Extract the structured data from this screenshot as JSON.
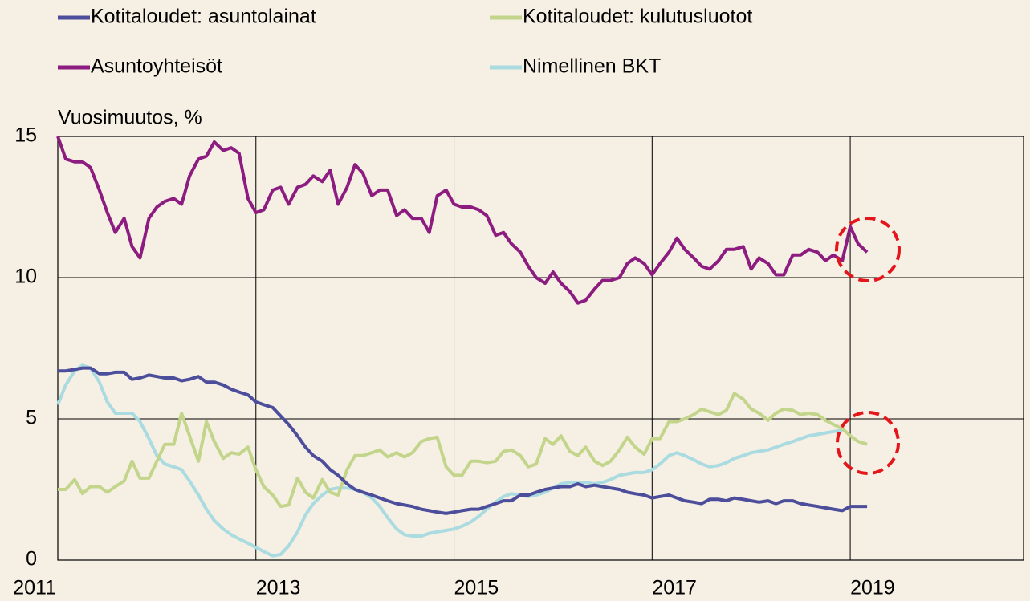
{
  "chart_data": {
    "type": "line",
    "y_axis_label": "Vuosimuutos, %",
    "legend": "top",
    "grid": true,
    "xlim": [
      2011,
      2020.75
    ],
    "xticks": [
      2011,
      2013,
      2015,
      2017,
      2019
    ],
    "ylim": [
      0,
      15
    ],
    "yticks": [
      0,
      5,
      10,
      15
    ],
    "x": [
      2011,
      2011.08,
      2011.17,
      2011.25,
      2011.33,
      2011.42,
      2011.5,
      2011.58,
      2011.67,
      2011.75,
      2011.83,
      2011.92,
      2012,
      2012.08,
      2012.17,
      2012.25,
      2012.33,
      2012.42,
      2012.5,
      2012.58,
      2012.67,
      2012.75,
      2012.83,
      2012.92,
      2013,
      2013.08,
      2013.17,
      2013.25,
      2013.33,
      2013.42,
      2013.5,
      2013.58,
      2013.67,
      2013.75,
      2013.83,
      2013.92,
      2014,
      2014.08,
      2014.17,
      2014.25,
      2014.33,
      2014.42,
      2014.5,
      2014.58,
      2014.67,
      2014.75,
      2014.83,
      2014.92,
      2015,
      2015.08,
      2015.17,
      2015.25,
      2015.33,
      2015.42,
      2015.5,
      2015.58,
      2015.67,
      2015.75,
      2015.83,
      2015.92,
      2016,
      2016.08,
      2016.17,
      2016.25,
      2016.33,
      2016.42,
      2016.5,
      2016.58,
      2016.67,
      2016.75,
      2016.83,
      2016.92,
      2017,
      2017.08,
      2017.17,
      2017.25,
      2017.33,
      2017.42,
      2017.5,
      2017.58,
      2017.67,
      2017.75,
      2017.83,
      2017.92,
      2018,
      2018.08,
      2018.17,
      2018.25,
      2018.33,
      2018.42,
      2018.5,
      2018.58,
      2018.67,
      2018.75,
      2018.83,
      2018.92,
      2019,
      2019.08,
      2019.17
    ],
    "series": [
      {
        "name": "Kotitaloudet: asuntolainat",
        "color": "#4c4e9c",
        "values": [
          6.7,
          6.7,
          6.75,
          6.8,
          6.8,
          6.6,
          6.6,
          6.65,
          6.65,
          6.4,
          6.45,
          6.55,
          6.5,
          6.45,
          6.45,
          6.35,
          6.4,
          6.5,
          6.3,
          6.3,
          6.2,
          6.05,
          5.95,
          5.85,
          5.6,
          5.5,
          5.4,
          5.1,
          4.8,
          4.4,
          4.0,
          3.7,
          3.5,
          3.2,
          3.0,
          2.7,
          2.5,
          2.4,
          2.3,
          2.2,
          2.1,
          2.0,
          1.95,
          1.9,
          1.8,
          1.75,
          1.7,
          1.65,
          1.7,
          1.75,
          1.8,
          1.8,
          1.9,
          2.0,
          2.1,
          2.1,
          2.3,
          2.3,
          2.4,
          2.5,
          2.55,
          2.6,
          2.6,
          2.7,
          2.6,
          2.65,
          2.6,
          2.55,
          2.5,
          2.4,
          2.35,
          2.3,
          2.2,
          2.25,
          2.3,
          2.2,
          2.1,
          2.05,
          2.0,
          2.15,
          2.15,
          2.1,
          2.2,
          2.15,
          2.1,
          2.05,
          2.1,
          2.0,
          2.1,
          2.1,
          2.0,
          1.95,
          1.9,
          1.85,
          1.8,
          1.75,
          1.9,
          1.9,
          1.9
        ]
      },
      {
        "name": "Kotitaloudet: kulutusluotot",
        "color": "#c3d58b",
        "values": [
          2.5,
          2.5,
          2.85,
          2.35,
          2.6,
          2.6,
          2.4,
          2.6,
          2.8,
          3.5,
          2.9,
          2.9,
          3.5,
          4.1,
          4.1,
          5.2,
          4.4,
          3.5,
          4.9,
          4.2,
          3.6,
          3.8,
          3.75,
          4.0,
          3.2,
          2.6,
          2.3,
          1.9,
          1.95,
          2.9,
          2.4,
          2.2,
          2.85,
          2.4,
          2.3,
          3.2,
          3.7,
          3.7,
          3.8,
          3.9,
          3.65,
          3.8,
          3.65,
          3.8,
          4.2,
          4.3,
          4.35,
          3.3,
          3.0,
          3.0,
          3.5,
          3.5,
          3.45,
          3.5,
          3.85,
          3.9,
          3.7,
          3.3,
          3.4,
          4.3,
          4.1,
          4.4,
          3.85,
          3.7,
          4.0,
          3.5,
          3.35,
          3.5,
          3.9,
          4.35,
          4.0,
          3.75,
          4.3,
          4.3,
          4.9,
          4.9,
          5.0,
          5.15,
          5.35,
          5.25,
          5.15,
          5.3,
          5.9,
          5.7,
          5.35,
          5.2,
          4.95,
          5.2,
          5.35,
          5.3,
          5.15,
          5.2,
          5.15,
          4.95,
          4.8,
          4.65,
          4.4,
          4.2,
          4.1
        ]
      },
      {
        "name": "Asuntoyhteisöt",
        "color": "#8c1c7f",
        "values": [
          15.0,
          14.2,
          14.1,
          14.1,
          13.9,
          13.1,
          12.3,
          11.6,
          12.1,
          11.1,
          10.7,
          12.1,
          12.5,
          12.7,
          12.8,
          12.6,
          13.6,
          14.2,
          14.3,
          14.8,
          14.5,
          14.6,
          14.4,
          12.8,
          12.3,
          12.4,
          13.1,
          13.2,
          12.6,
          13.2,
          13.3,
          13.6,
          13.4,
          13.8,
          12.6,
          13.2,
          14.0,
          13.7,
          12.9,
          13.1,
          13.1,
          12.2,
          12.4,
          12.1,
          12.1,
          11.6,
          12.9,
          13.1,
          12.6,
          12.5,
          12.5,
          12.4,
          12.2,
          11.5,
          11.6,
          11.2,
          10.9,
          10.4,
          10.0,
          9.8,
          10.2,
          9.8,
          9.5,
          9.1,
          9.2,
          9.6,
          9.9,
          9.9,
          10.0,
          10.5,
          10.7,
          10.5,
          10.1,
          10.5,
          10.9,
          11.4,
          11.0,
          10.7,
          10.4,
          10.3,
          10.6,
          11.0,
          11.0,
          11.1,
          10.3,
          10.7,
          10.5,
          10.1,
          10.1,
          10.8,
          10.8,
          11.0,
          10.9,
          10.6,
          10.8,
          10.6,
          11.8,
          11.2,
          10.9
        ]
      },
      {
        "name": "Nimellinen BKT",
        "color": "#a9dbe0",
        "values": [
          5.5,
          6.2,
          6.7,
          6.9,
          6.8,
          6.3,
          5.6,
          5.2,
          5.2,
          5.2,
          4.9,
          4.3,
          3.7,
          3.4,
          3.3,
          3.2,
          2.8,
          2.3,
          1.8,
          1.4,
          1.1,
          0.9,
          0.75,
          0.6,
          0.45,
          0.3,
          0.15,
          0.2,
          0.5,
          1.0,
          1.6,
          2.0,
          2.3,
          2.5,
          2.55,
          2.55,
          2.5,
          2.4,
          2.2,
          1.9,
          1.5,
          1.1,
          0.9,
          0.85,
          0.85,
          0.95,
          1.0,
          1.05,
          1.1,
          1.2,
          1.35,
          1.55,
          1.8,
          2.05,
          2.25,
          2.35,
          2.3,
          2.25,
          2.3,
          2.4,
          2.55,
          2.7,
          2.75,
          2.75,
          2.75,
          2.7,
          2.75,
          2.85,
          3.0,
          3.05,
          3.1,
          3.1,
          3.2,
          3.4,
          3.7,
          3.8,
          3.7,
          3.55,
          3.4,
          3.3,
          3.35,
          3.45,
          3.6,
          3.7,
          3.8,
          3.85,
          3.9,
          4.0,
          4.1,
          4.2,
          4.3,
          4.4,
          4.45,
          4.5,
          4.55,
          4.6,
          null,
          null,
          null
        ]
      }
    ]
  }
}
